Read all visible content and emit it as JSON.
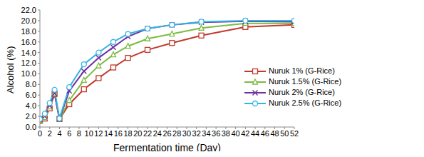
{
  "chart_data": {
    "type": "line",
    "x_label": "Fermentation time (Day)",
    "y_label": "Alcohol (%)",
    "x": [
      0,
      1,
      2,
      3,
      4,
      6,
      9,
      12,
      15,
      18,
      22,
      27,
      33,
      42,
      52
    ],
    "xlim": [
      0,
      52
    ],
    "xticks": [
      0,
      2,
      4,
      6,
      8,
      10,
      12,
      14,
      16,
      18,
      20,
      22,
      24,
      26,
      28,
      30,
      32,
      34,
      36,
      38,
      40,
      42,
      44,
      46,
      48,
      50,
      52
    ],
    "ylim": [
      0,
      22
    ],
    "yticks": [
      {
        "value": 0,
        "label": "0.0"
      },
      {
        "value": 2,
        "label": "2.0"
      },
      {
        "value": 4,
        "label": "4.0"
      },
      {
        "value": 6,
        "label": "6.0"
      },
      {
        "value": 8,
        "label": "8.0"
      },
      {
        "value": 10,
        "label": "10.0"
      },
      {
        "value": 12,
        "label": "12.0"
      },
      {
        "value": 14,
        "label": "14.0"
      },
      {
        "value": 16,
        "label": "16.0"
      },
      {
        "value": 18,
        "label": "18.0"
      },
      {
        "value": 20,
        "label": "20.0"
      },
      {
        "value": 22,
        "label": "22.0"
      }
    ],
    "grid": false,
    "legend": "right",
    "series": [
      {
        "name": "Nuruk 1% (G-Rice)",
        "color": "#c0392b",
        "marker": "square",
        "values": [
          1.2,
          1.6,
          3.5,
          6.2,
          1.5,
          4.3,
          7.1,
          9.2,
          11.2,
          13.0,
          14.5,
          15.8,
          17.2,
          18.8,
          19.2
        ]
      },
      {
        "name": "Nuruk 1.5% (G-Rice)",
        "color": "#7dbb42",
        "marker": "triangle",
        "values": [
          1.3,
          1.8,
          3.8,
          6.3,
          1.5,
          5.0,
          8.8,
          11.5,
          13.6,
          15.2,
          16.6,
          17.5,
          18.6,
          19.5,
          19.5
        ]
      },
      {
        "name": "Nuruk 2% (G-Rice)",
        "color": "#7030a0",
        "marker": "x",
        "values": [
          1.4,
          2.0,
          4.0,
          6.3,
          1.5,
          6.8,
          10.5,
          13.0,
          15.0,
          17.0,
          18.5,
          19.2,
          19.7,
          19.9,
          19.8
        ]
      },
      {
        "name": "Nuruk 2.5% (G-Rice)",
        "color": "#33b5e5",
        "marker": "circle",
        "values": [
          1.5,
          2.5,
          4.5,
          7.0,
          1.6,
          7.5,
          11.8,
          14.0,
          16.0,
          17.5,
          18.5,
          19.2,
          19.8,
          20.0,
          20.0
        ]
      }
    ]
  }
}
